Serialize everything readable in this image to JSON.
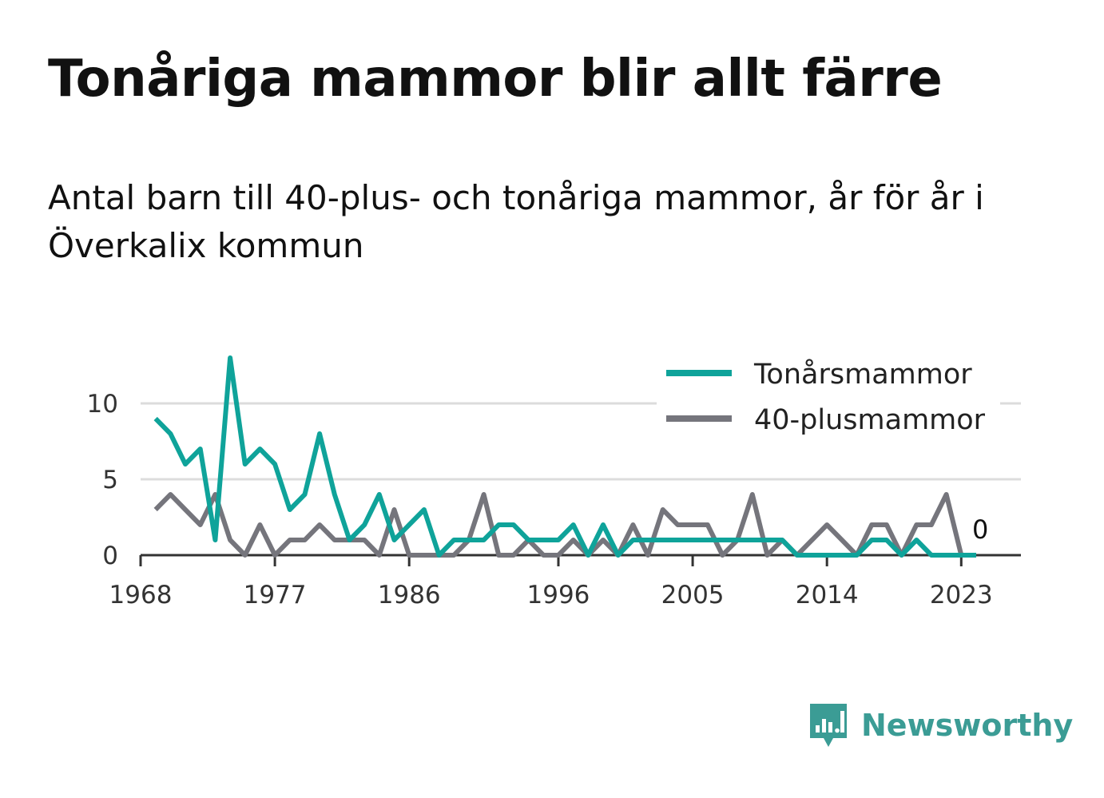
{
  "title": "Tonåriga mammor blir allt färre",
  "subtitle": "Antal barn till 40-plus- och tonåriga mammor, år för år i Överkalix kommun",
  "brand": {
    "name": "Newsworthy",
    "color": "#3b9c95",
    "icon": "newsworthy-logo-icon"
  },
  "chart_data": {
    "type": "line",
    "title": "Tonåriga mammor blir allt färre",
    "xlabel": "",
    "ylabel": "",
    "x": [
      1969,
      1970,
      1971,
      1972,
      1973,
      1974,
      1975,
      1976,
      1977,
      1978,
      1979,
      1980,
      1981,
      1982,
      1983,
      1984,
      1985,
      1986,
      1987,
      1988,
      1989,
      1990,
      1991,
      1992,
      1993,
      1994,
      1995,
      1996,
      1997,
      1998,
      1999,
      2000,
      2001,
      2002,
      2003,
      2004,
      2005,
      2006,
      2007,
      2008,
      2009,
      2010,
      2011,
      2012,
      2013,
      2014,
      2015,
      2016,
      2017,
      2018,
      2019,
      2020,
      2021,
      2022,
      2023,
      2024
    ],
    "xticks": [
      1968,
      1977,
      1986,
      1996,
      2005,
      2014,
      2023
    ],
    "yticks": [
      0,
      5,
      10
    ],
    "xlim": [
      1968,
      2027
    ],
    "ylim": [
      0,
      13
    ],
    "grid": true,
    "legend_position": "top-right",
    "end_label": "0",
    "series": [
      {
        "name": "Tonårsmammor",
        "color": "#0fa39a",
        "values": [
          9,
          8,
          6,
          7,
          1,
          13,
          6,
          7,
          6,
          3,
          4,
          8,
          4,
          1,
          2,
          4,
          1,
          2,
          3,
          0,
          1,
          1,
          1,
          2,
          2,
          1,
          1,
          1,
          2,
          0,
          2,
          0,
          1,
          1,
          1,
          1,
          1,
          1,
          1,
          1,
          1,
          1,
          1,
          0,
          0,
          0,
          0,
          0,
          1,
          1,
          0,
          1,
          0,
          0,
          0,
          0
        ]
      },
      {
        "name": "40-plusmammor",
        "color": "#75757c",
        "values": [
          3,
          4,
          3,
          2,
          4,
          1,
          0,
          2,
          0,
          1,
          1,
          2,
          1,
          1,
          1,
          0,
          3,
          0,
          0,
          0,
          0,
          1,
          4,
          0,
          0,
          1,
          0,
          0,
          1,
          0,
          1,
          0,
          2,
          0,
          3,
          2,
          2,
          2,
          0,
          1,
          4,
          0,
          1,
          0,
          1,
          2,
          1,
          0,
          2,
          2,
          0,
          2,
          2,
          4,
          0,
          0
        ]
      }
    ]
  }
}
